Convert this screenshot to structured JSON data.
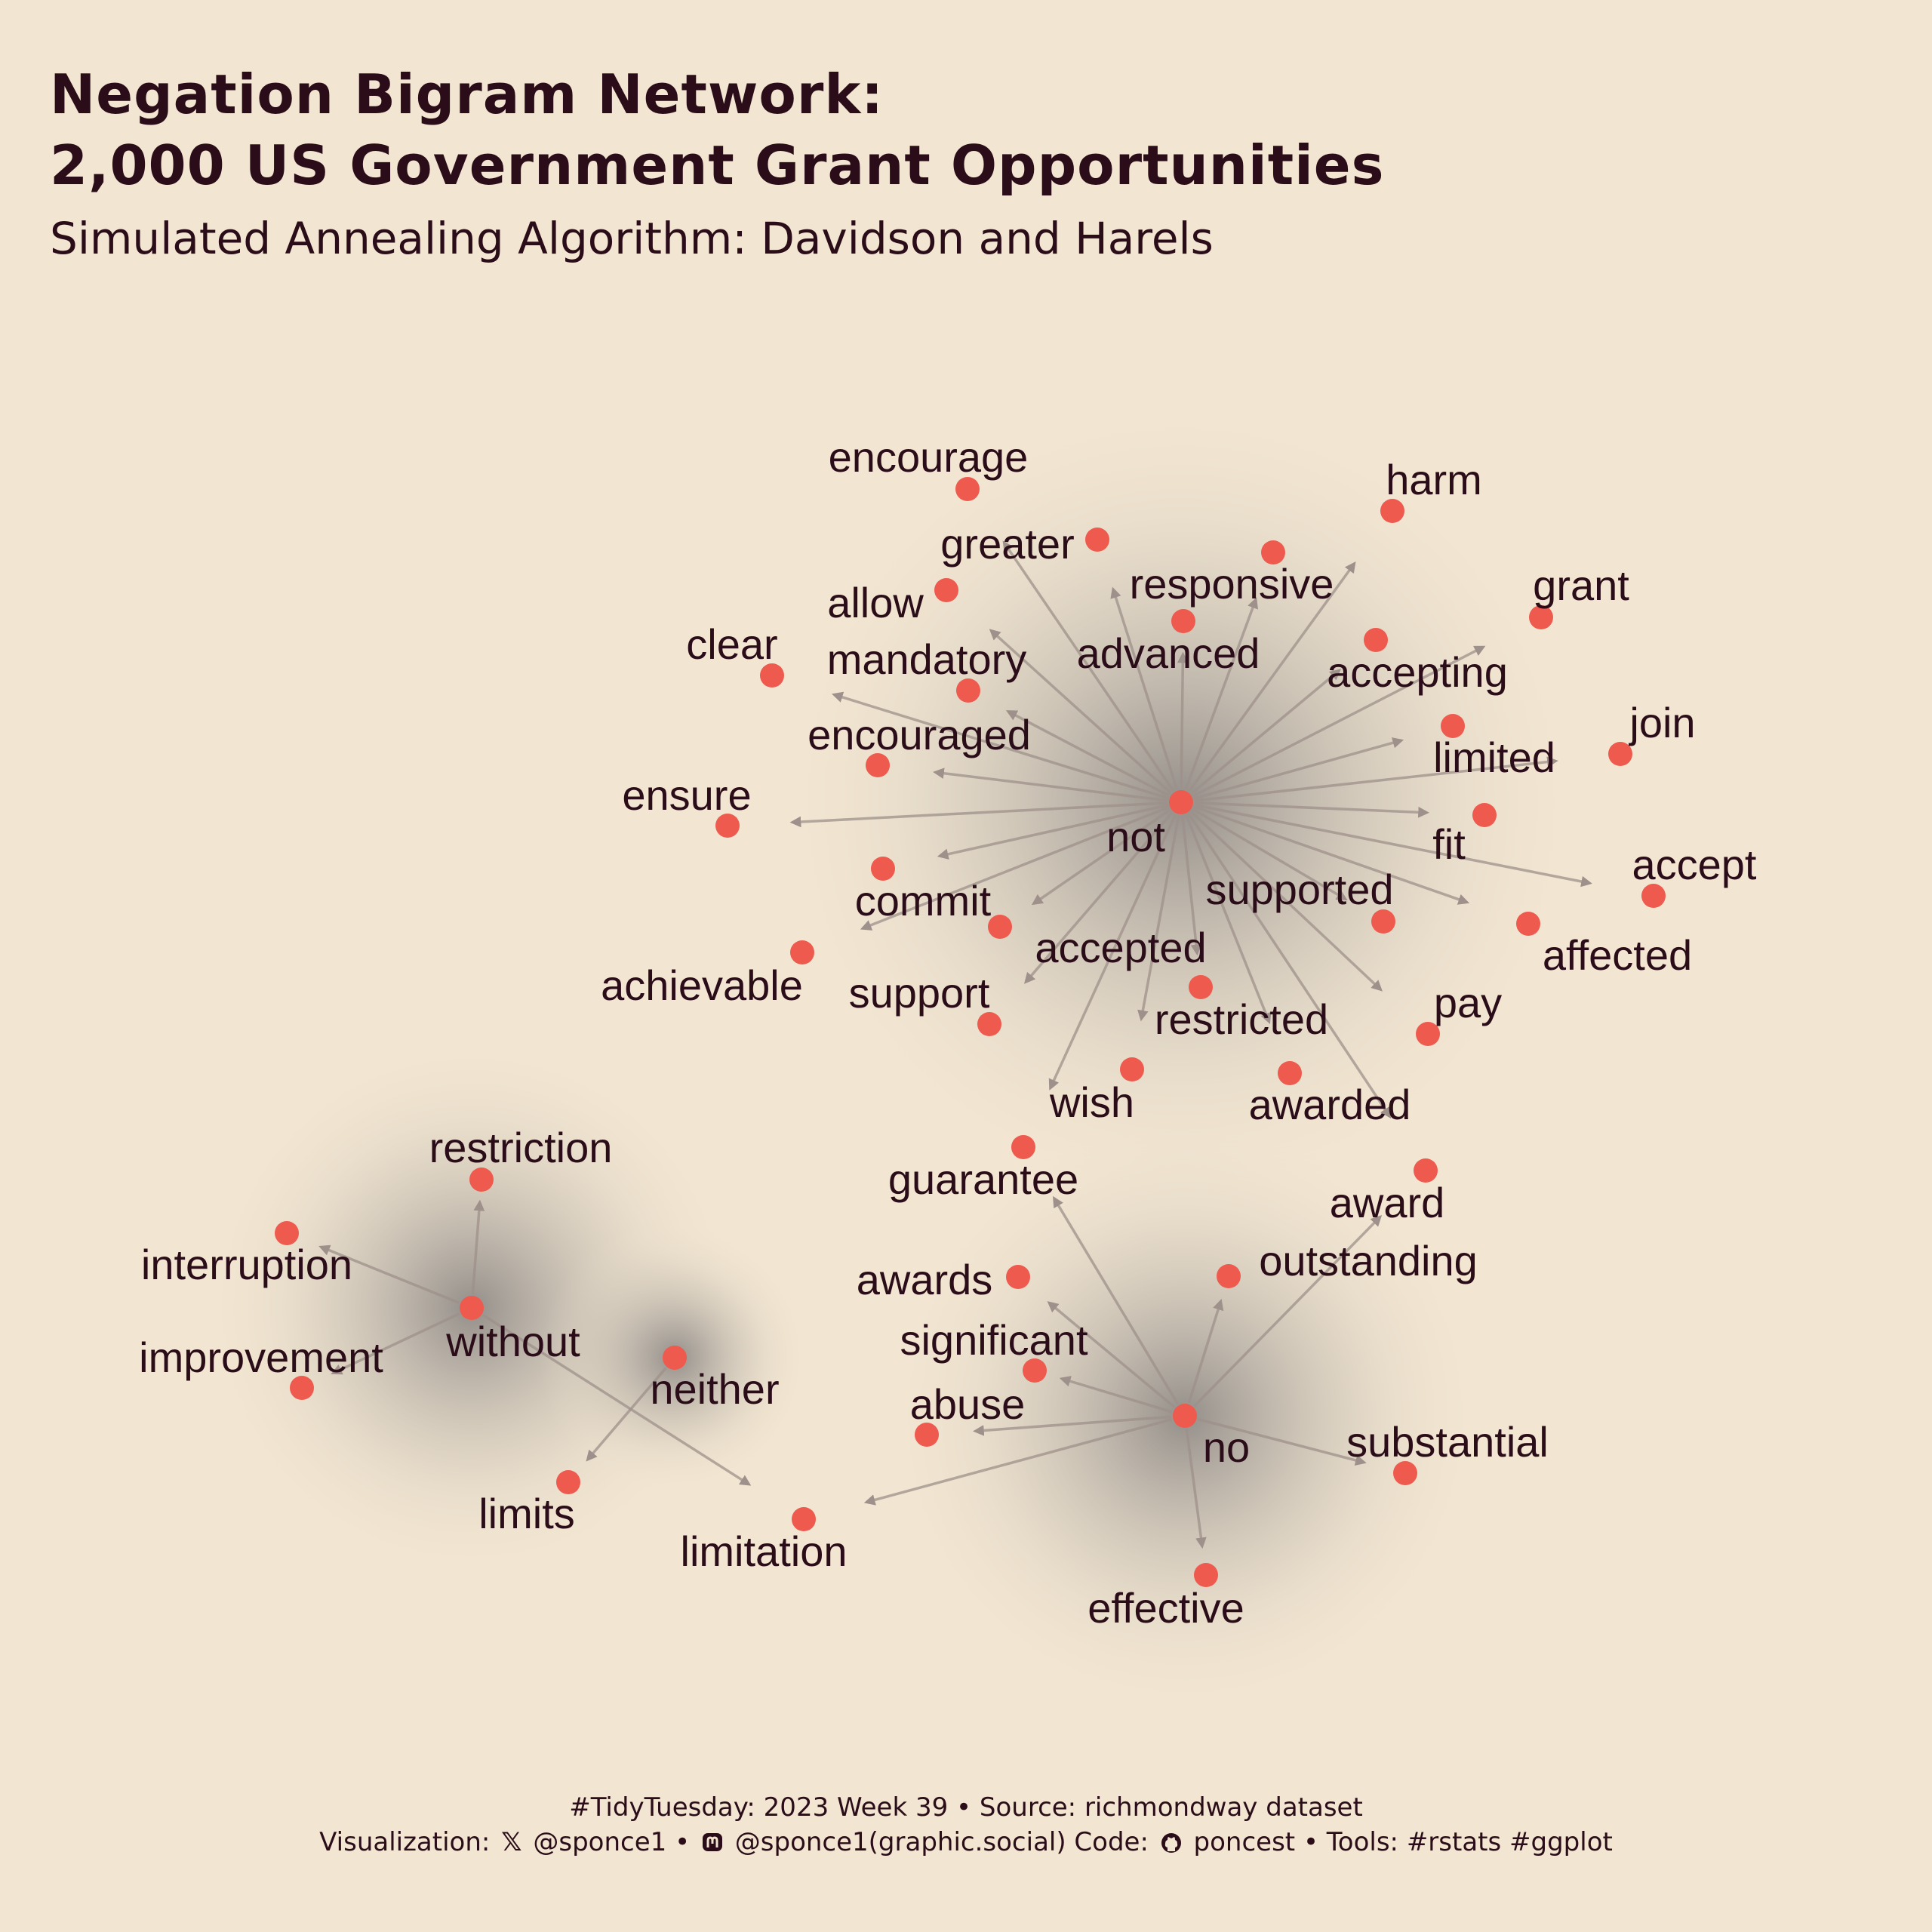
{
  "title": {
    "line1": "Negation Bigram Network:",
    "line2": "2,000 US Government Grant Opportunities"
  },
  "subtitle": "Simulated Annealing Algorithm: Davidson and Harels",
  "colors": {
    "background": "#f2e6d2",
    "node": "#ee5a4e",
    "edge": "#9e908a",
    "text": "#2a0d18"
  },
  "network": {
    "hubs": [
      "not",
      "no",
      "without",
      "neither"
    ],
    "nodes": [
      {
        "id": "not",
        "label": "not"
      },
      {
        "id": "no",
        "label": "no"
      },
      {
        "id": "without",
        "label": "without"
      },
      {
        "id": "neither",
        "label": "neither"
      },
      {
        "id": "encourage",
        "label": "encourage"
      },
      {
        "id": "harm",
        "label": "harm"
      },
      {
        "id": "greater",
        "label": "greater"
      },
      {
        "id": "responsive",
        "label": "responsive"
      },
      {
        "id": "allow",
        "label": "allow"
      },
      {
        "id": "grant",
        "label": "grant"
      },
      {
        "id": "advanced",
        "label": "advanced"
      },
      {
        "id": "clear",
        "label": "clear"
      },
      {
        "id": "mandatory",
        "label": "mandatory"
      },
      {
        "id": "accepting",
        "label": "accepting"
      },
      {
        "id": "join",
        "label": "join"
      },
      {
        "id": "encouraged",
        "label": "encouraged"
      },
      {
        "id": "limited",
        "label": "limited"
      },
      {
        "id": "ensure",
        "label": "ensure"
      },
      {
        "id": "fit",
        "label": "fit"
      },
      {
        "id": "accept",
        "label": "accept"
      },
      {
        "id": "commit",
        "label": "commit"
      },
      {
        "id": "supported",
        "label": "supported"
      },
      {
        "id": "affected",
        "label": "affected"
      },
      {
        "id": "achievable",
        "label": "achievable"
      },
      {
        "id": "accepted",
        "label": "accepted"
      },
      {
        "id": "support",
        "label": "support"
      },
      {
        "id": "restricted",
        "label": "restricted"
      },
      {
        "id": "pay",
        "label": "pay"
      },
      {
        "id": "wish",
        "label": "wish"
      },
      {
        "id": "awarded",
        "label": "awarded"
      },
      {
        "id": "guarantee",
        "label": "guarantee"
      },
      {
        "id": "award",
        "label": "award"
      },
      {
        "id": "restriction",
        "label": "restriction"
      },
      {
        "id": "interruption",
        "label": "interruption"
      },
      {
        "id": "outstanding",
        "label": "outstanding"
      },
      {
        "id": "awards",
        "label": "awards"
      },
      {
        "id": "significant",
        "label": "significant"
      },
      {
        "id": "improvement",
        "label": "improvement"
      },
      {
        "id": "abuse",
        "label": "abuse"
      },
      {
        "id": "substantial",
        "label": "substantial"
      },
      {
        "id": "limits",
        "label": "limits"
      },
      {
        "id": "limitation",
        "label": "limitation"
      },
      {
        "id": "effective",
        "label": "effective"
      }
    ],
    "edges": [
      [
        "not",
        "encourage"
      ],
      [
        "not",
        "harm"
      ],
      [
        "not",
        "greater"
      ],
      [
        "not",
        "responsive"
      ],
      [
        "not",
        "allow"
      ],
      [
        "not",
        "grant"
      ],
      [
        "not",
        "advanced"
      ],
      [
        "not",
        "clear"
      ],
      [
        "not",
        "mandatory"
      ],
      [
        "not",
        "accepting"
      ],
      [
        "not",
        "join"
      ],
      [
        "not",
        "encouraged"
      ],
      [
        "not",
        "limited"
      ],
      [
        "not",
        "ensure"
      ],
      [
        "not",
        "fit"
      ],
      [
        "not",
        "accept"
      ],
      [
        "not",
        "commit"
      ],
      [
        "not",
        "supported"
      ],
      [
        "not",
        "affected"
      ],
      [
        "not",
        "achievable"
      ],
      [
        "not",
        "accepted"
      ],
      [
        "not",
        "support"
      ],
      [
        "not",
        "restricted"
      ],
      [
        "not",
        "pay"
      ],
      [
        "not",
        "wish"
      ],
      [
        "not",
        "awarded"
      ],
      [
        "not",
        "guarantee"
      ],
      [
        "not",
        "award"
      ],
      [
        "no",
        "guarantee"
      ],
      [
        "no",
        "award"
      ],
      [
        "no",
        "outstanding"
      ],
      [
        "no",
        "awards"
      ],
      [
        "no",
        "significant"
      ],
      [
        "no",
        "abuse"
      ],
      [
        "no",
        "substantial"
      ],
      [
        "no",
        "limitation"
      ],
      [
        "no",
        "effective"
      ],
      [
        "without",
        "restriction"
      ],
      [
        "without",
        "interruption"
      ],
      [
        "without",
        "improvement"
      ],
      [
        "without",
        "limitation"
      ],
      [
        "neither",
        "limits"
      ]
    ]
  },
  "caption": {
    "line1": "#TidyTuesday: 2023 Week 39 • Source: richmondway dataset",
    "line2_prefix": "Visualization:",
    "x_icon": "x-logo-icon",
    "x_handle": "@sponce1 •",
    "mastodon_icon": "mastodon-icon",
    "mastodon_handle": "@sponce1(graphic.social) Code:",
    "github_icon": "github-icon",
    "github_handle": "poncest • Tools: #rstats #ggplot"
  }
}
